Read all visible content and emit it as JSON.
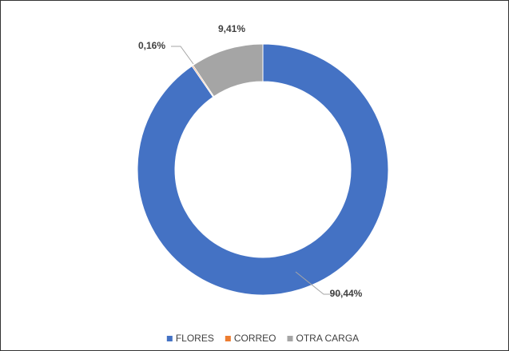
{
  "chart_data": {
    "type": "donut",
    "categories": [
      "FLORES",
      "CORREO",
      "OTRA CARGA"
    ],
    "values": [
      90.44,
      0.16,
      9.41
    ],
    "value_labels": [
      "90,44%",
      "0,16%",
      "9,41%"
    ],
    "colors": [
      "#4472c4",
      "#ed7d31",
      "#a5a5a5"
    ],
    "legend": "bottom"
  }
}
